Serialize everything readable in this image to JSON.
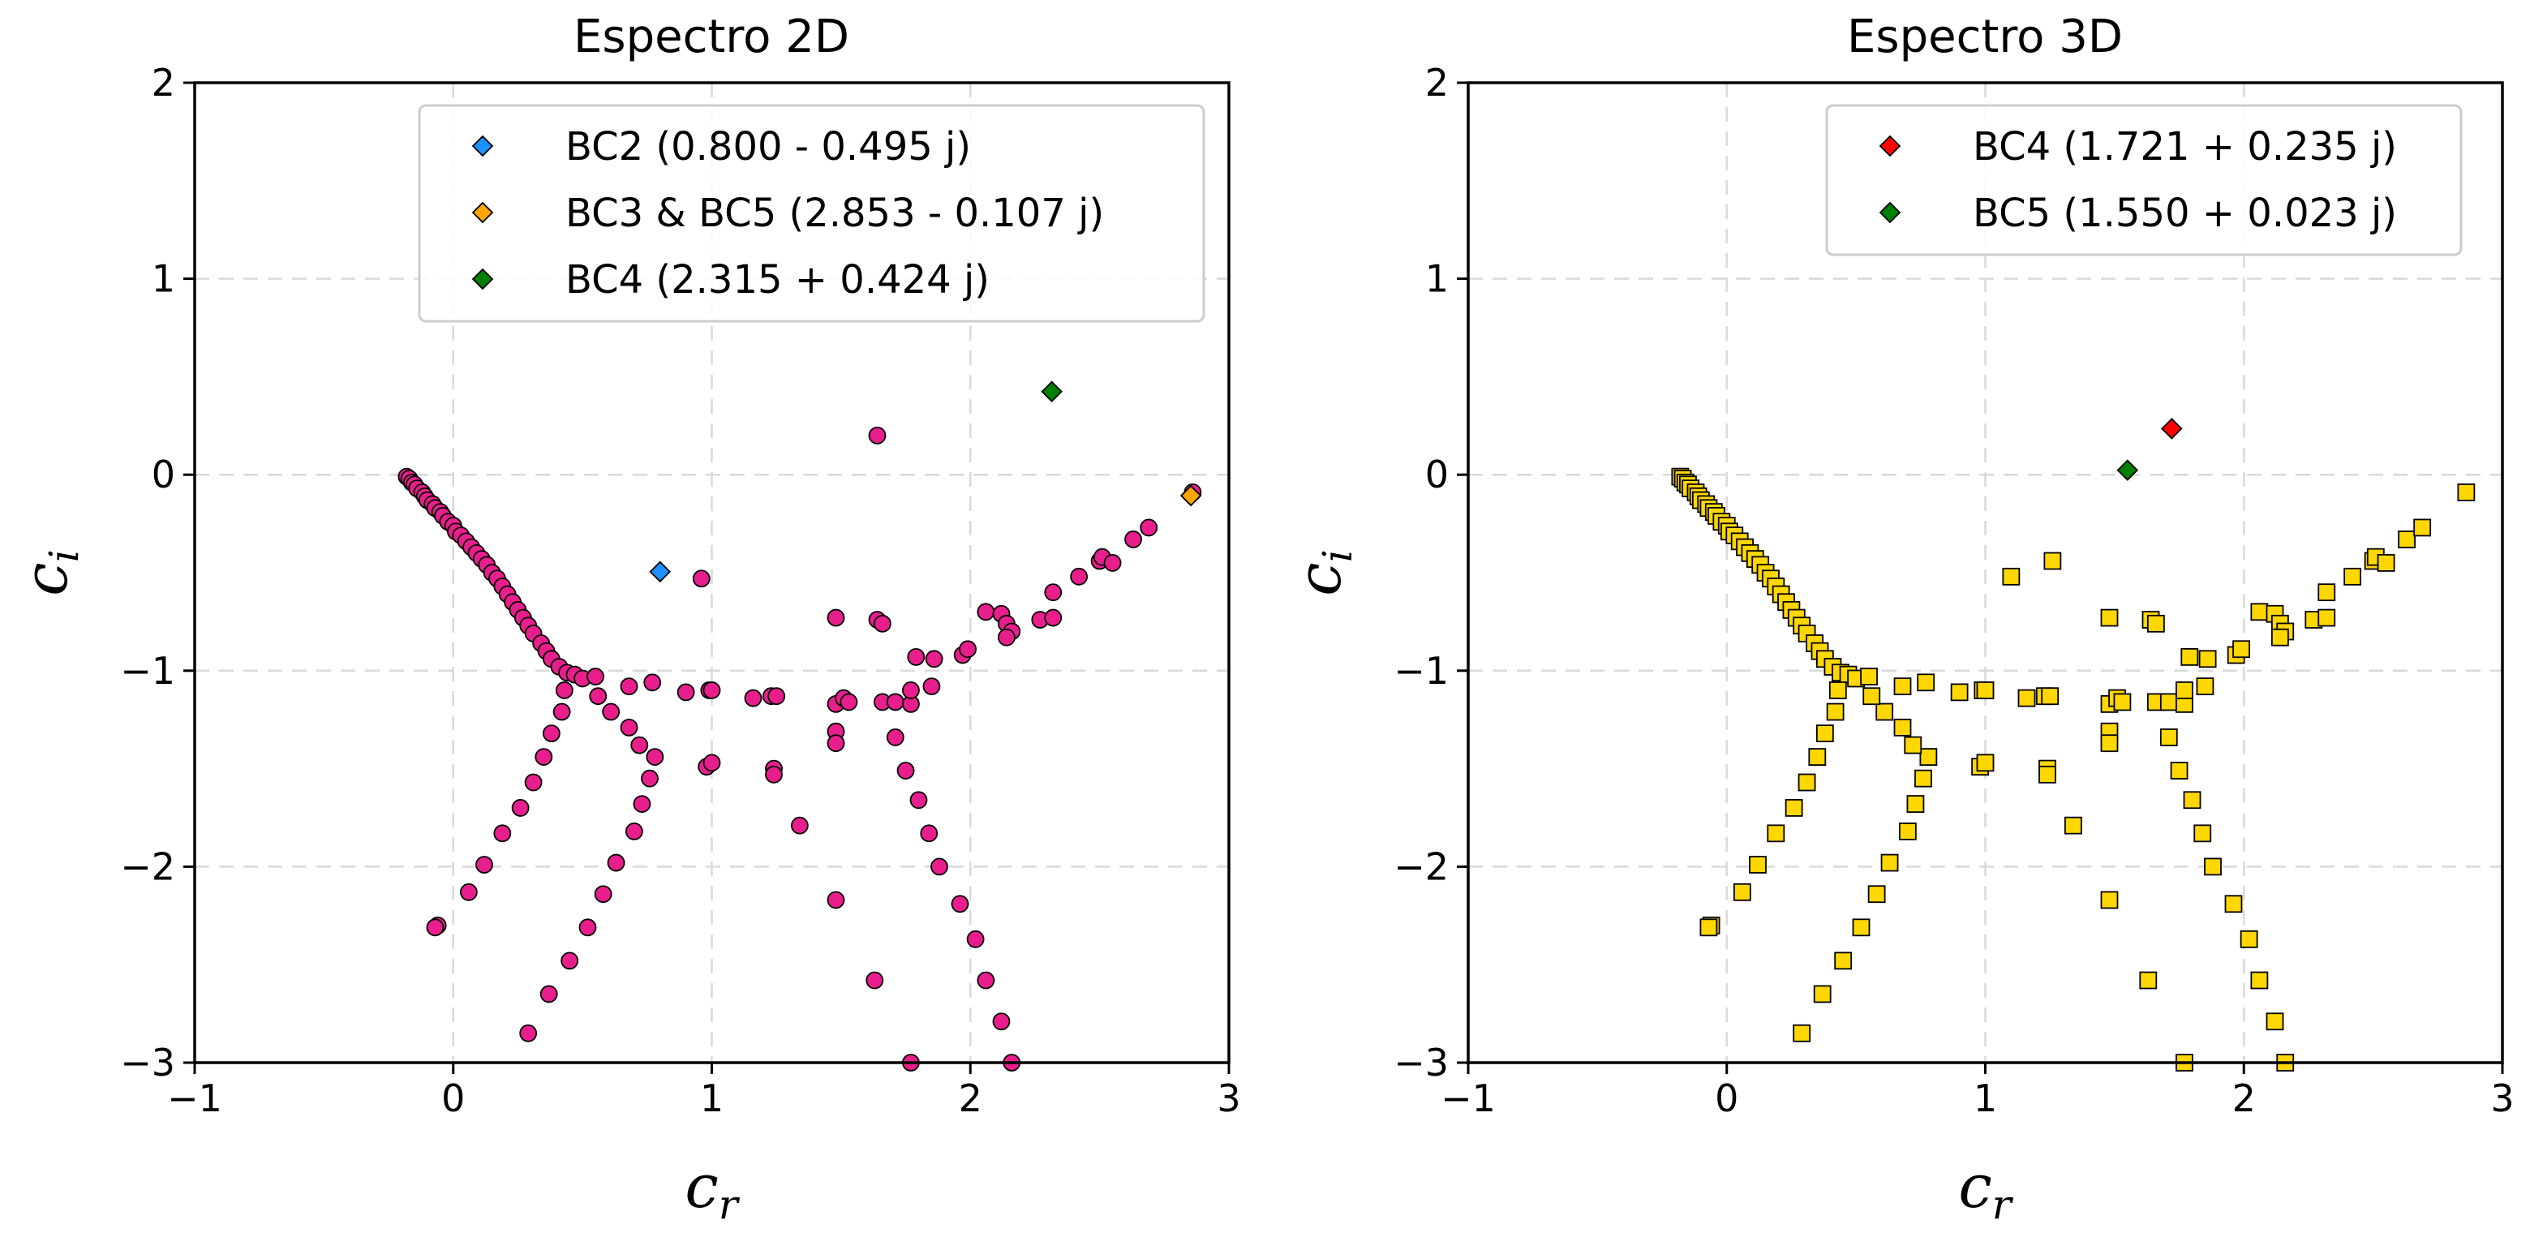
{
  "chart_data": [
    {
      "type": "scatter",
      "title": "Espectro 2D",
      "xlabel": "c",
      "xlabel_sub": "r",
      "ylabel": "c",
      "ylabel_sub": "i",
      "xlim": [
        -1,
        3
      ],
      "ylim": [
        -3,
        2
      ],
      "xticks": [
        "−1",
        "0",
        "1",
        "2",
        "3"
      ],
      "yticks": [
        "−3",
        "−2",
        "−1",
        "0",
        "1",
        "2"
      ],
      "grid": true,
      "legend_position": "top-right",
      "legend": [
        {
          "label": "BC2 (0.800 - 0.495 j)",
          "color": "#1e90ff"
        },
        {
          "label": "BC3 & BC5 (2.853 - 0.107 j)",
          "color": "#ffa500"
        },
        {
          "label": "BC4 (2.315 + 0.424 j)",
          "color": "#008000"
        }
      ],
      "series": [
        {
          "marker": "circle",
          "color": "#e81e8c",
          "points": [
            [
              -0.18,
              -0.01
            ],
            [
              -0.17,
              -0.02
            ],
            [
              -0.16,
              -0.04
            ],
            [
              -0.15,
              -0.05
            ],
            [
              -0.14,
              -0.07
            ],
            [
              -0.12,
              -0.09
            ],
            [
              -0.11,
              -0.11
            ],
            [
              -0.1,
              -0.13
            ],
            [
              -0.08,
              -0.15
            ],
            [
              -0.07,
              -0.17
            ],
            [
              -0.05,
              -0.19
            ],
            [
              -0.04,
              -0.21
            ],
            [
              -0.02,
              -0.24
            ],
            [
              0.0,
              -0.26
            ],
            [
              0.01,
              -0.29
            ],
            [
              0.03,
              -0.31
            ],
            [
              0.05,
              -0.34
            ],
            [
              0.07,
              -0.37
            ],
            [
              0.09,
              -0.4
            ],
            [
              0.11,
              -0.43
            ],
            [
              0.13,
              -0.46
            ],
            [
              0.15,
              -0.5
            ],
            [
              0.17,
              -0.53
            ],
            [
              0.19,
              -0.57
            ],
            [
              0.21,
              -0.61
            ],
            [
              0.23,
              -0.65
            ],
            [
              0.25,
              -0.69
            ],
            [
              0.27,
              -0.73
            ],
            [
              0.29,
              -0.77
            ],
            [
              0.31,
              -0.81
            ],
            [
              0.34,
              -0.86
            ],
            [
              0.36,
              -0.9
            ],
            [
              0.38,
              -0.94
            ],
            [
              0.41,
              -0.98
            ],
            [
              0.44,
              -1.01
            ],
            [
              0.47,
              -1.02
            ],
            [
              0.5,
              -1.04
            ],
            [
              0.55,
              -1.03
            ],
            [
              0.43,
              -1.1
            ],
            [
              0.68,
              -1.08
            ],
            [
              0.77,
              -1.06
            ],
            [
              0.9,
              -1.11
            ],
            [
              0.99,
              -1.1
            ],
            [
              1.0,
              -1.1
            ],
            [
              1.16,
              -1.14
            ],
            [
              1.23,
              -1.13
            ],
            [
              1.25,
              -1.13
            ],
            [
              1.48,
              -1.17
            ],
            [
              1.51,
              -1.14
            ],
            [
              1.53,
              -1.16
            ],
            [
              1.66,
              -1.16
            ],
            [
              1.71,
              -1.16
            ],
            [
              1.77,
              -1.17
            ],
            [
              1.77,
              -1.1
            ],
            [
              1.85,
              -1.08
            ],
            [
              1.79,
              -0.93
            ],
            [
              1.86,
              -0.94
            ],
            [
              1.97,
              -0.92
            ],
            [
              1.99,
              -0.89
            ],
            [
              2.06,
              -0.7
            ],
            [
              2.12,
              -0.71
            ],
            [
              2.14,
              -0.76
            ],
            [
              2.16,
              -0.8
            ],
            [
              2.14,
              -0.83
            ],
            [
              2.27,
              -0.74
            ],
            [
              2.32,
              -0.73
            ],
            [
              2.32,
              -0.6
            ],
            [
              2.42,
              -0.52
            ],
            [
              2.5,
              -0.44
            ],
            [
              2.51,
              -0.42
            ],
            [
              2.55,
              -0.45
            ],
            [
              2.63,
              -0.33
            ],
            [
              2.69,
              -0.27
            ],
            [
              2.86,
              -0.09
            ],
            [
              1.64,
              -0.74
            ],
            [
              1.66,
              -0.76
            ],
            [
              1.64,
              0.2
            ],
            [
              0.96,
              -0.53
            ],
            [
              1.48,
              -0.73
            ],
            [
              0.42,
              -1.21
            ],
            [
              0.38,
              -1.32
            ],
            [
              0.35,
              -1.44
            ],
            [
              0.31,
              -1.57
            ],
            [
              0.26,
              -1.7
            ],
            [
              0.19,
              -1.83
            ],
            [
              0.12,
              -1.99
            ],
            [
              0.06,
              -2.13
            ],
            [
              -0.06,
              -2.3
            ],
            [
              -0.07,
              -2.31
            ],
            [
              0.29,
              -2.85
            ],
            [
              0.37,
              -2.65
            ],
            [
              0.45,
              -2.48
            ],
            [
              0.52,
              -2.31
            ],
            [
              0.58,
              -2.14
            ],
            [
              0.63,
              -1.98
            ],
            [
              0.7,
              -1.82
            ],
            [
              0.73,
              -1.68
            ],
            [
              0.76,
              -1.55
            ],
            [
              0.78,
              -1.44
            ],
            [
              0.72,
              -1.38
            ],
            [
              0.68,
              -1.29
            ],
            [
              0.61,
              -1.21
            ],
            [
              0.56,
              -1.13
            ],
            [
              0.98,
              -1.49
            ],
            [
              1.0,
              -1.47
            ],
            [
              1.24,
              -1.5
            ],
            [
              1.24,
              -1.53
            ],
            [
              1.34,
              -1.79
            ],
            [
              1.48,
              -1.31
            ],
            [
              1.48,
              -1.37
            ],
            [
              1.48,
              -2.17
            ],
            [
              1.63,
              -2.58
            ],
            [
              1.71,
              -1.34
            ],
            [
              1.75,
              -1.51
            ],
            [
              1.8,
              -1.66
            ],
            [
              1.84,
              -1.83
            ],
            [
              1.88,
              -2.0
            ],
            [
              1.96,
              -2.19
            ],
            [
              2.02,
              -2.37
            ],
            [
              2.06,
              -2.58
            ],
            [
              2.12,
              -2.79
            ],
            [
              1.77,
              -3.0
            ],
            [
              2.16,
              -3.0
            ]
          ]
        },
        {
          "name": "BC2 (0.800 - 0.495 j)",
          "marker": "diamond",
          "color": "#1e90ff",
          "points": [
            [
              0.8,
              -0.495
            ]
          ]
        },
        {
          "name": "BC3 & BC5 (2.853 - 0.107 j)",
          "marker": "diamond",
          "color": "#ffa500",
          "points": [
            [
              2.853,
              -0.107
            ]
          ]
        },
        {
          "name": "BC4 (2.315 + 0.424 j)",
          "marker": "diamond",
          "color": "#008000",
          "points": [
            [
              2.315,
              0.424
            ]
          ]
        }
      ]
    },
    {
      "type": "scatter",
      "title": "Espectro 3D",
      "xlabel": "c",
      "xlabel_sub": "r",
      "ylabel": "c",
      "ylabel_sub": "i",
      "xlim": [
        -1,
        3
      ],
      "ylim": [
        -3,
        2
      ],
      "xticks": [
        "−1",
        "0",
        "1",
        "2",
        "3"
      ],
      "yticks": [
        "−3",
        "−2",
        "−1",
        "0",
        "1",
        "2"
      ],
      "grid": true,
      "legend_position": "top-right",
      "legend": [
        {
          "label": "BC4 (1.721 + 0.235 j)",
          "color": "#ff0000"
        },
        {
          "label": "BC5 (1.550 + 0.023 j)",
          "color": "#008000"
        }
      ],
      "series": [
        {
          "marker": "square",
          "color": "#ffd700",
          "points": [
            [
              -0.18,
              -0.01
            ],
            [
              -0.17,
              -0.02
            ],
            [
              -0.16,
              -0.04
            ],
            [
              -0.15,
              -0.05
            ],
            [
              -0.14,
              -0.07
            ],
            [
              -0.12,
              -0.09
            ],
            [
              -0.11,
              -0.11
            ],
            [
              -0.1,
              -0.13
            ],
            [
              -0.08,
              -0.15
            ],
            [
              -0.07,
              -0.17
            ],
            [
              -0.05,
              -0.19
            ],
            [
              -0.04,
              -0.21
            ],
            [
              -0.02,
              -0.24
            ],
            [
              0.0,
              -0.26
            ],
            [
              0.01,
              -0.29
            ],
            [
              0.03,
              -0.31
            ],
            [
              0.05,
              -0.34
            ],
            [
              0.07,
              -0.37
            ],
            [
              0.09,
              -0.4
            ],
            [
              0.11,
              -0.43
            ],
            [
              0.13,
              -0.46
            ],
            [
              0.15,
              -0.5
            ],
            [
              0.17,
              -0.53
            ],
            [
              0.19,
              -0.57
            ],
            [
              0.21,
              -0.61
            ],
            [
              0.23,
              -0.65
            ],
            [
              0.25,
              -0.69
            ],
            [
              0.27,
              -0.73
            ],
            [
              0.29,
              -0.77
            ],
            [
              0.31,
              -0.81
            ],
            [
              0.34,
              -0.86
            ],
            [
              0.36,
              -0.9
            ],
            [
              0.38,
              -0.94
            ],
            [
              0.41,
              -0.98
            ],
            [
              0.44,
              -1.01
            ],
            [
              0.47,
              -1.02
            ],
            [
              0.5,
              -1.04
            ],
            [
              0.55,
              -1.03
            ],
            [
              0.43,
              -1.1
            ],
            [
              0.68,
              -1.08
            ],
            [
              0.77,
              -1.06
            ],
            [
              0.9,
              -1.11
            ],
            [
              0.99,
              -1.1
            ],
            [
              1.0,
              -1.1
            ],
            [
              1.16,
              -1.14
            ],
            [
              1.23,
              -1.13
            ],
            [
              1.25,
              -1.13
            ],
            [
              1.48,
              -1.17
            ],
            [
              1.51,
              -1.14
            ],
            [
              1.53,
              -1.16
            ],
            [
              1.66,
              -1.16
            ],
            [
              1.71,
              -1.16
            ],
            [
              1.77,
              -1.17
            ],
            [
              1.77,
              -1.1
            ],
            [
              1.85,
              -1.08
            ],
            [
              1.79,
              -0.93
            ],
            [
              1.86,
              -0.94
            ],
            [
              1.97,
              -0.92
            ],
            [
              1.99,
              -0.89
            ],
            [
              2.06,
              -0.7
            ],
            [
              2.12,
              -0.71
            ],
            [
              2.14,
              -0.76
            ],
            [
              2.16,
              -0.8
            ],
            [
              2.14,
              -0.83
            ],
            [
              2.27,
              -0.74
            ],
            [
              2.32,
              -0.73
            ],
            [
              2.32,
              -0.6
            ],
            [
              2.42,
              -0.52
            ],
            [
              2.5,
              -0.44
            ],
            [
              2.51,
              -0.42
            ],
            [
              2.55,
              -0.45
            ],
            [
              2.63,
              -0.33
            ],
            [
              2.69,
              -0.27
            ],
            [
              2.86,
              -0.09
            ],
            [
              1.64,
              -0.74
            ],
            [
              1.66,
              -0.76
            ],
            [
              1.1,
              -0.52
            ],
            [
              1.26,
              -0.44
            ],
            [
              1.48,
              -0.73
            ],
            [
              0.42,
              -1.21
            ],
            [
              0.38,
              -1.32
            ],
            [
              0.35,
              -1.44
            ],
            [
              0.31,
              -1.57
            ],
            [
              0.26,
              -1.7
            ],
            [
              0.19,
              -1.83
            ],
            [
              0.12,
              -1.99
            ],
            [
              0.06,
              -2.13
            ],
            [
              -0.06,
              -2.3
            ],
            [
              -0.07,
              -2.31
            ],
            [
              0.29,
              -2.85
            ],
            [
              0.37,
              -2.65
            ],
            [
              0.45,
              -2.48
            ],
            [
              0.52,
              -2.31
            ],
            [
              0.58,
              -2.14
            ],
            [
              0.63,
              -1.98
            ],
            [
              0.7,
              -1.82
            ],
            [
              0.73,
              -1.68
            ],
            [
              0.76,
              -1.55
            ],
            [
              0.78,
              -1.44
            ],
            [
              0.72,
              -1.38
            ],
            [
              0.68,
              -1.29
            ],
            [
              0.61,
              -1.21
            ],
            [
              0.56,
              -1.13
            ],
            [
              0.98,
              -1.49
            ],
            [
              1.0,
              -1.47
            ],
            [
              1.24,
              -1.5
            ],
            [
              1.24,
              -1.53
            ],
            [
              1.34,
              -1.79
            ],
            [
              1.48,
              -1.31
            ],
            [
              1.48,
              -1.37
            ],
            [
              1.48,
              -2.17
            ],
            [
              1.63,
              -2.58
            ],
            [
              1.71,
              -1.34
            ],
            [
              1.75,
              -1.51
            ],
            [
              1.8,
              -1.66
            ],
            [
              1.84,
              -1.83
            ],
            [
              1.88,
              -2.0
            ],
            [
              1.96,
              -2.19
            ],
            [
              2.02,
              -2.37
            ],
            [
              2.06,
              -2.58
            ],
            [
              2.12,
              -2.79
            ],
            [
              1.77,
              -3.0
            ],
            [
              2.16,
              -3.0
            ]
          ]
        },
        {
          "name": "BC4 (1.721 + 0.235 j)",
          "marker": "diamond",
          "color": "#ff0000",
          "points": [
            [
              1.721,
              0.235
            ]
          ]
        },
        {
          "name": "BC5 (1.550 + 0.023 j)",
          "marker": "diamond",
          "color": "#008000",
          "points": [
            [
              1.55,
              0.023
            ]
          ]
        }
      ]
    }
  ]
}
